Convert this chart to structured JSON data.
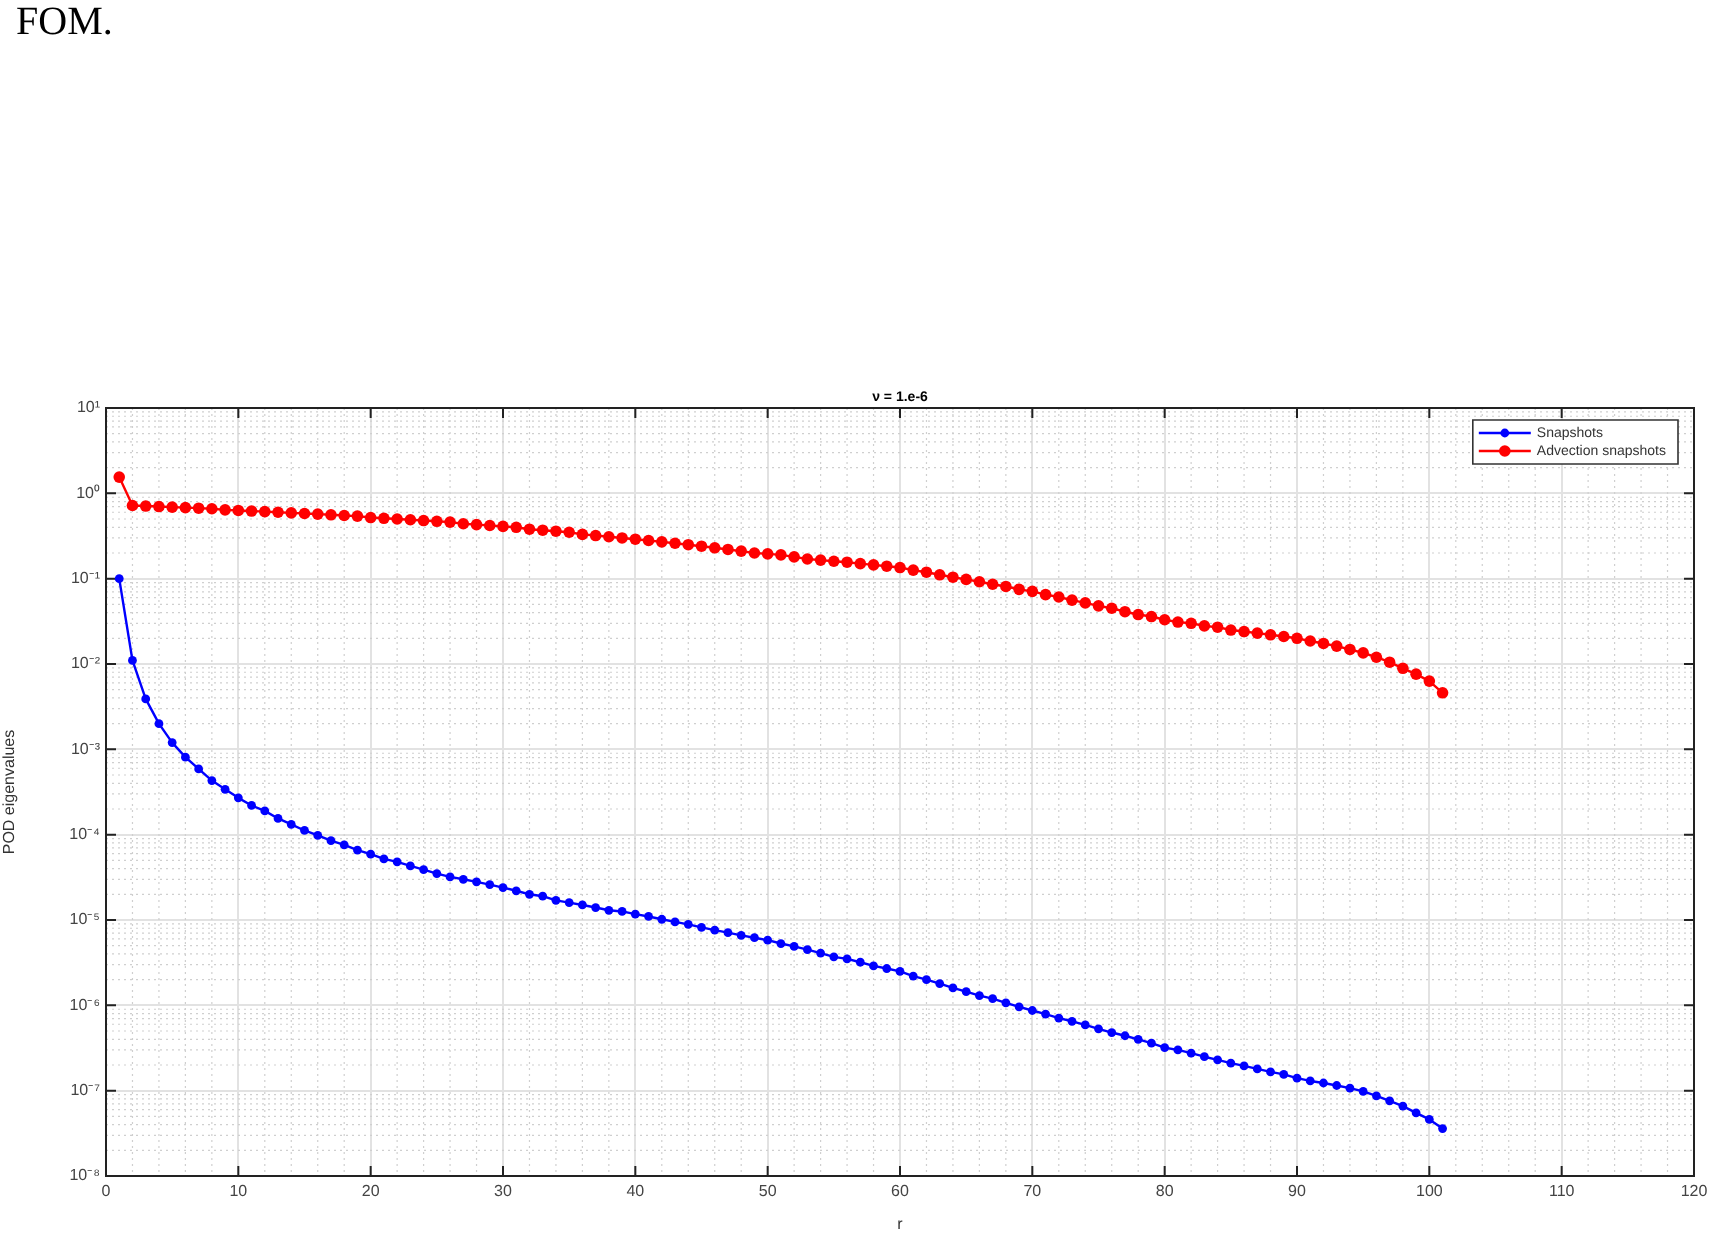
{
  "chart_data": {
    "type": "line",
    "title": "ν = 1.e-6",
    "xlabel": "r",
    "ylabel": "POD eigenvalues",
    "annotations": [
      "FOM."
    ],
    "x": [
      1,
      2,
      3,
      4,
      5,
      6,
      7,
      8,
      9,
      10,
      11,
      12,
      13,
      14,
      15,
      16,
      17,
      18,
      19,
      20,
      21,
      22,
      23,
      24,
      25,
      26,
      27,
      28,
      29,
      30,
      31,
      32,
      33,
      34,
      35,
      36,
      37,
      38,
      39,
      40,
      41,
      42,
      43,
      44,
      45,
      46,
      47,
      48,
      49,
      50,
      51,
      52,
      53,
      54,
      55,
      56,
      57,
      58,
      59,
      60,
      61,
      62,
      63,
      64,
      65,
      66,
      67,
      68,
      69,
      70,
      71,
      72,
      73,
      74,
      75,
      76,
      77,
      78,
      79,
      80,
      81,
      82,
      83,
      84,
      85,
      86,
      87,
      88,
      89,
      90,
      91,
      92,
      93,
      94,
      95,
      96,
      97,
      98,
      99,
      100,
      101
    ],
    "series": [
      {
        "name": "Snapshots",
        "color": "#0000ff",
        "values": [
          0.1,
          0.011,
          0.0039,
          0.002,
          0.0012,
          0.00081,
          0.00059,
          0.00043,
          0.00034,
          0.00027,
          0.00022,
          0.00019,
          0.000155,
          0.000132,
          0.000112,
          9.8e-05,
          8.5e-05,
          7.6e-05,
          6.6e-05,
          5.9e-05,
          5.2e-05,
          4.8e-05,
          4.3e-05,
          3.9e-05,
          3.5e-05,
          3.2e-05,
          3e-05,
          2.8e-05,
          2.6e-05,
          2.4e-05,
          2.2e-05,
          2e-05,
          1.9e-05,
          1.7e-05,
          1.6e-05,
          1.5e-05,
          1.4e-05,
          1.3e-05,
          1.26e-05,
          1.17e-05,
          1.1e-05,
          1.02e-05,
          9.5e-06,
          8.9e-06,
          8.2e-06,
          7.6e-06,
          7.1e-06,
          6.6e-06,
          6.2e-06,
          5.8e-06,
          5.3e-06,
          4.9e-06,
          4.5e-06,
          4.1e-06,
          3.7e-06,
          3.5e-06,
          3.2e-06,
          2.9e-06,
          2.7e-06,
          2.5e-06,
          2.2e-06,
          2e-06,
          1.8e-06,
          1.6e-06,
          1.45e-06,
          1.3e-06,
          1.2e-06,
          1.07e-06,
          9.6e-07,
          8.7e-07,
          7.9e-07,
          7.1e-07,
          6.5e-07,
          5.9e-07,
          5.3e-07,
          4.8e-07,
          4.4e-07,
          4e-07,
          3.6e-07,
          3.2e-07,
          3e-07,
          2.75e-07,
          2.5e-07,
          2.3e-07,
          2.1e-07,
          1.95e-07,
          1.8e-07,
          1.66e-07,
          1.55e-07,
          1.4e-07,
          1.3e-07,
          1.23e-07,
          1.15e-07,
          1.07e-07,
          9.8e-08,
          8.7e-08,
          7.6e-08,
          6.6e-08,
          5.5e-08,
          4.6e-08,
          3.6e-08
        ]
      },
      {
        "name": "Advection snapshots",
        "color": "#ff0000",
        "values": [
          1.55,
          0.72,
          0.71,
          0.7,
          0.69,
          0.68,
          0.67,
          0.66,
          0.64,
          0.63,
          0.62,
          0.61,
          0.6,
          0.59,
          0.58,
          0.57,
          0.56,
          0.55,
          0.54,
          0.52,
          0.51,
          0.5,
          0.49,
          0.48,
          0.47,
          0.46,
          0.44,
          0.43,
          0.42,
          0.41,
          0.4,
          0.38,
          0.37,
          0.36,
          0.35,
          0.33,
          0.32,
          0.31,
          0.3,
          0.29,
          0.28,
          0.27,
          0.26,
          0.25,
          0.24,
          0.23,
          0.22,
          0.21,
          0.2,
          0.195,
          0.19,
          0.18,
          0.17,
          0.165,
          0.16,
          0.156,
          0.15,
          0.145,
          0.14,
          0.135,
          0.126,
          0.119,
          0.111,
          0.104,
          0.098,
          0.092,
          0.086,
          0.081,
          0.075,
          0.071,
          0.065,
          0.061,
          0.056,
          0.052,
          0.048,
          0.045,
          0.041,
          0.038,
          0.036,
          0.033,
          0.031,
          0.03,
          0.028,
          0.027,
          0.025,
          0.024,
          0.023,
          0.022,
          0.021,
          0.02,
          0.0186,
          0.0174,
          0.0162,
          0.0148,
          0.0135,
          0.012,
          0.0105,
          0.0089,
          0.0076,
          0.0063,
          0.0046
        ]
      }
    ],
    "log": "y",
    "xlim": [
      0,
      120
    ],
    "xticks": [
      0,
      10,
      20,
      30,
      40,
      50,
      60,
      70,
      80,
      90,
      100,
      110,
      120
    ],
    "ylim": [
      1e-08,
      10
    ],
    "yticks": [
      {
        "value": 1e-08,
        "label": "10⁻⁸"
      },
      {
        "value": 1e-07,
        "label": "10⁻⁷"
      },
      {
        "value": 1e-06,
        "label": "10⁻⁶"
      },
      {
        "value": 1e-05,
        "label": "10⁻⁵"
      },
      {
        "value": 0.0001,
        "label": "10⁻⁴"
      },
      {
        "value": 0.001,
        "label": "10⁻³"
      },
      {
        "value": 0.01,
        "label": "10⁻²"
      },
      {
        "value": 0.1,
        "label": "10⁻¹"
      },
      {
        "value": 1,
        "label": "10⁰"
      },
      {
        "value": 10,
        "label": "10¹"
      }
    ],
    "grid": true,
    "legend": "top right",
    "marker": "circle",
    "line_style": "solid"
  }
}
